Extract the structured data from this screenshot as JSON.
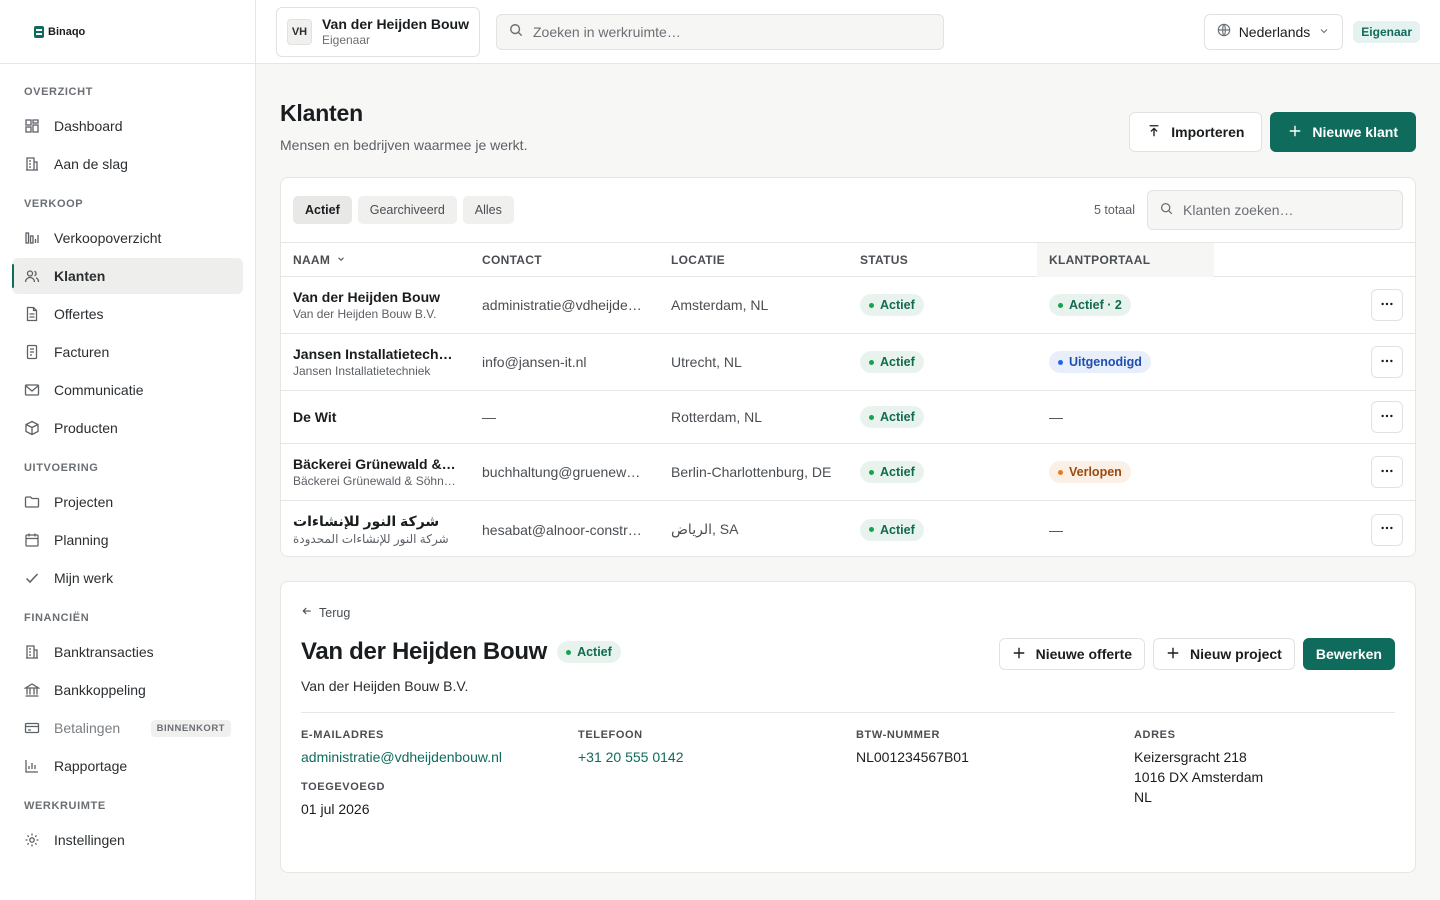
{
  "brand": {
    "name": "Binaqo",
    "accent": "#0f6b5b"
  },
  "nav": {
    "sections": [
      {
        "title": "OVERZICHT",
        "items": [
          {
            "label": "Dashboard",
            "icon": "dashboard-icon"
          },
          {
            "label": "Aan de slag",
            "icon": "building-icon"
          }
        ]
      },
      {
        "title": "VERKOOP",
        "items": [
          {
            "label": "Verkoopoverzicht",
            "icon": "chart-icon"
          },
          {
            "label": "Klanten",
            "icon": "users-icon",
            "active": true
          },
          {
            "label": "Offertes",
            "icon": "document-icon"
          },
          {
            "label": "Facturen",
            "icon": "invoice-icon"
          },
          {
            "label": "Communicatie",
            "icon": "mail-icon"
          },
          {
            "label": "Producten",
            "icon": "box-icon"
          }
        ]
      },
      {
        "title": "UITVOERING",
        "items": [
          {
            "label": "Projecten",
            "icon": "folder-icon"
          },
          {
            "label": "Planning",
            "icon": "calendar-icon"
          },
          {
            "label": "Mijn werk",
            "icon": "check-icon"
          }
        ]
      },
      {
        "title": "FINANCIËN",
        "items": [
          {
            "label": "Banktransacties",
            "icon": "transactions-icon"
          },
          {
            "label": "Bankkoppeling",
            "icon": "bank-icon"
          },
          {
            "label": "Betalingen",
            "icon": "card-icon",
            "badge": "BINNENKORT"
          },
          {
            "label": "Rapportage",
            "icon": "report-icon"
          }
        ]
      },
      {
        "title": "WERKRUIMTE",
        "items": [
          {
            "label": "Instellingen",
            "icon": "gear-icon"
          }
        ]
      }
    ]
  },
  "topbar": {
    "workspace": {
      "initials": "VH",
      "name": "Van der Heijden Bouw",
      "role": "Eigenaar"
    },
    "search_placeholder": "Zoeken in werkruimte…",
    "language": "Nederlands",
    "role_badge": "Eigenaar"
  },
  "page": {
    "title": "Klanten",
    "subtitle": "Mensen en bedrijven waarmee je werkt.",
    "import_label": "Importeren",
    "new_label": "Nieuwe klant"
  },
  "table": {
    "filters": [
      "Actief",
      "Gearchiveerd",
      "Alles"
    ],
    "active_filter": "Actief",
    "total": "5 totaal",
    "search_placeholder": "Klanten zoeken…",
    "columns": [
      "NAAM",
      "CONTACT",
      "LOCATIE",
      "STATUS",
      "KLANTPORTAAL"
    ],
    "rows": [
      {
        "name": "Van der Heijden Bouw",
        "sub": "Van der Heijden Bouw B.V.",
        "contact": "administratie@vdheijdenbouw.nl",
        "location": "Amsterdam, NL",
        "status": "Actief",
        "portal": "Actief · 2",
        "portal_tone": "green"
      },
      {
        "name": "Jansen Installatietechniek",
        "sub": "Jansen Installatietechniek",
        "contact": "info@jansen-it.nl",
        "location": "Utrecht, NL",
        "status": "Actief",
        "portal": "Uitgenodigd",
        "portal_tone": "blue"
      },
      {
        "name": "De Wit",
        "sub": "",
        "contact": "—",
        "location": "Rotterdam, NL",
        "status": "Actief",
        "portal": "—",
        "portal_tone": "none"
      },
      {
        "name": "Bäckerei Grünewald & Söhne",
        "sub": "Bäckerei Grünewald & Söhne GmbH",
        "contact": "buchhaltung@gruenewald.de",
        "location": "Berlin-Charlottenburg, DE",
        "status": "Actief",
        "portal": "Verlopen",
        "portal_tone": "orange"
      },
      {
        "name": "شركة النور للإنشاءات",
        "sub": "شركة النور للإنشاءات المحدودة",
        "contact": "hesabat@alnoor-construction.sa",
        "location": "الرياض, SA",
        "status": "Actief",
        "portal": "—",
        "portal_tone": "none",
        "rtl": true
      }
    ]
  },
  "detail": {
    "back_label": "Terug",
    "title": "Van der Heijden Bouw",
    "status": "Actief",
    "subtitle": "Van der Heijden Bouw B.V.",
    "actions": {
      "new_quote": "Nieuwe offerte",
      "new_project": "Nieuw project",
      "edit": "Bewerken"
    },
    "fields": {
      "email_label": "E-MAILADRES",
      "email": "administratie@vdheijdenbouw.nl",
      "phone_label": "TELEFOON",
      "phone": "+31 20 555 0142",
      "vat_label": "BTW-NUMMER",
      "vat": "NL001234567B01",
      "address_label": "ADRES",
      "address_line1": "Keizersgracht 218",
      "address_line2": "1016 DX Amsterdam",
      "address_line3": "NL",
      "added_label": "TOEGEVOEGD",
      "added": "01 jul 2026"
    }
  }
}
